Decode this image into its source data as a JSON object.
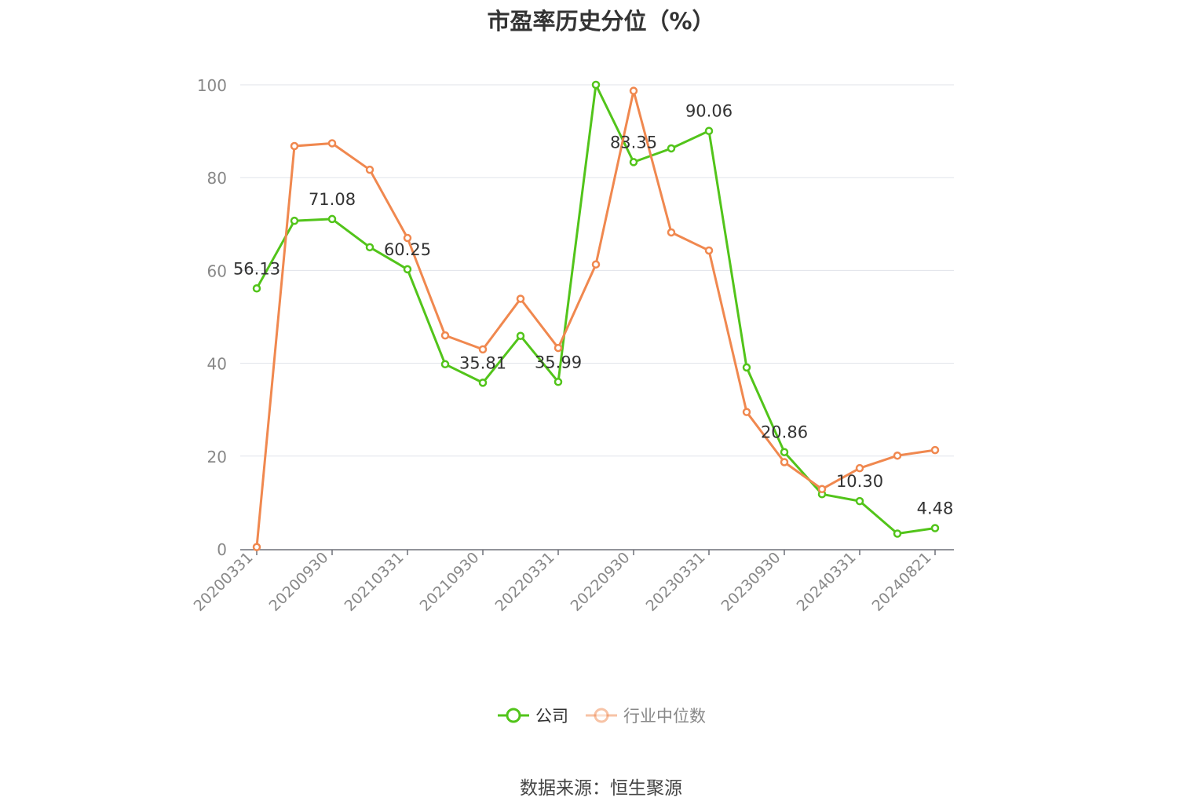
{
  "chart_data": {
    "type": "line",
    "title": "市盈率历史分位（%）",
    "xlabel": "",
    "ylabel": "",
    "ylim": [
      0,
      100
    ],
    "yticks": [
      "0",
      "20",
      "40",
      "60",
      "80",
      "100"
    ],
    "tick_labels": [
      "20200331",
      "20200930",
      "20210331",
      "20210930",
      "20220331",
      "20220930",
      "20230331",
      "20230930",
      "20240331",
      "20240821"
    ],
    "grid": true,
    "legend_position": "bottom",
    "series": [
      {
        "name": "公司",
        "color": "#52c41a",
        "values": [
          56.13,
          70.7,
          71.08,
          65.0,
          60.25,
          39.8,
          35.81,
          45.9,
          35.99,
          100.0,
          83.35,
          86.3,
          90.06,
          39.1,
          20.86,
          11.8,
          10.3,
          3.3,
          4.48
        ],
        "labels": [
          "56.13",
          "",
          "71.08",
          "",
          "60.25",
          "",
          "35.81",
          "",
          "35.99",
          "",
          "83.35",
          "",
          "90.06",
          "",
          "20.86",
          "",
          "10.30",
          "",
          "4.48"
        ]
      },
      {
        "name": "行业中位数",
        "color": "#f0884f",
        "values": [
          0.4,
          86.8,
          87.4,
          81.7,
          67.0,
          46.0,
          43.0,
          53.9,
          43.3,
          61.3,
          98.7,
          68.2,
          64.3,
          29.5,
          18.7,
          12.9,
          17.4,
          20.1,
          21.3
        ]
      }
    ]
  },
  "source": "数据来源：恒生聚源"
}
